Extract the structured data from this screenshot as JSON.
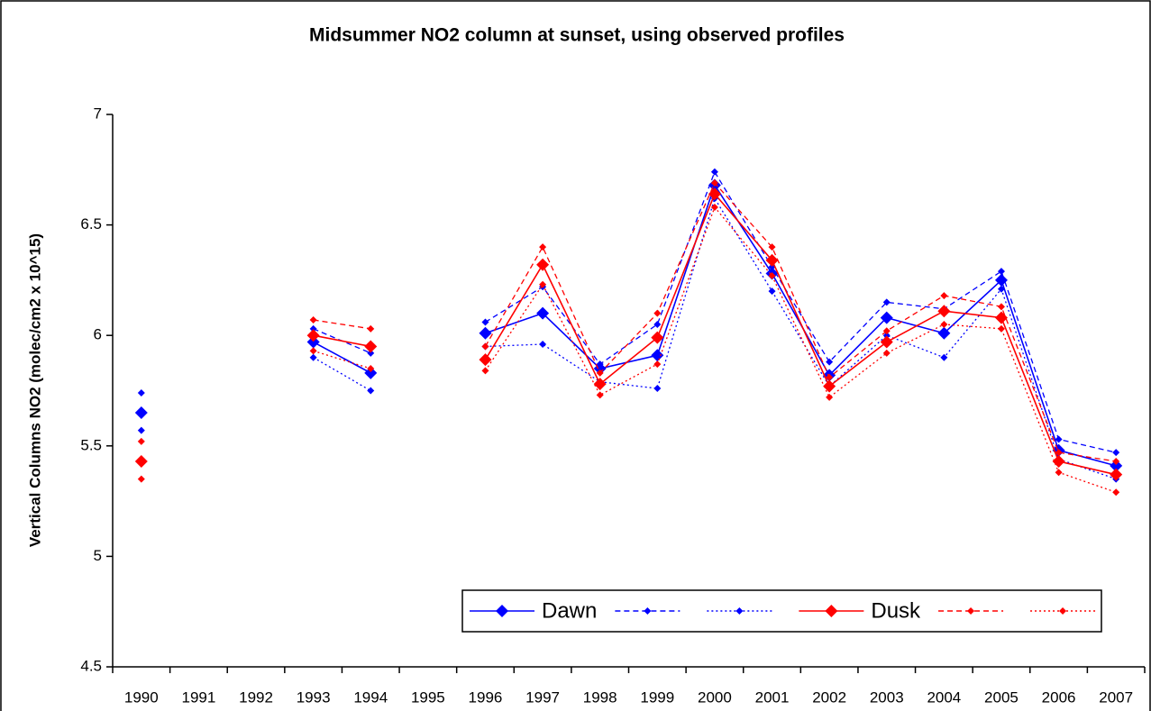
{
  "chart_data": {
    "type": "line",
    "title": "Midsummer NO2 column at sunset, using observed profiles",
    "y_label": "Vertical Columns NO2 (molec/cm2 x 10^15)",
    "categories": [
      "1990",
      "1991",
      "1992",
      "1993",
      "1994",
      "1995",
      "1996",
      "1997",
      "1998",
      "1999",
      "2000",
      "2001",
      "2002",
      "2003",
      "2004",
      "2005",
      "2006",
      "2007"
    ],
    "ylim": [
      4.5,
      7
    ],
    "yticks": [
      4.5,
      5,
      5.5,
      6,
      6.5,
      7
    ],
    "grid": false,
    "legend": "bottom-right",
    "series": [
      {
        "name": "Dawn",
        "color": "#0000ff",
        "style": "solid",
        "marker": "large",
        "values": [
          5.65,
          null,
          null,
          5.97,
          5.83,
          null,
          6.01,
          6.1,
          5.85,
          5.91,
          6.68,
          6.28,
          5.82,
          6.08,
          6.01,
          6.25,
          5.48,
          5.41
        ]
      },
      {
        "color": "#0000ff",
        "style": "dashed",
        "marker": "small",
        "values": [
          5.74,
          null,
          null,
          6.03,
          5.92,
          null,
          6.06,
          6.22,
          5.87,
          6.05,
          6.74,
          6.31,
          5.88,
          6.15,
          6.12,
          6.29,
          5.53,
          5.47
        ]
      },
      {
        "color": "#0000ff",
        "style": "dotted",
        "marker": "small",
        "values": [
          5.57,
          null,
          null,
          5.9,
          5.75,
          null,
          5.95,
          5.96,
          5.79,
          5.76,
          6.62,
          6.2,
          5.77,
          6.0,
          5.9,
          6.21,
          5.44,
          5.35
        ]
      },
      {
        "name": "Dusk",
        "color": "#ff0000",
        "style": "solid",
        "marker": "large",
        "values": [
          5.43,
          null,
          null,
          6.0,
          5.95,
          null,
          5.89,
          6.32,
          5.78,
          5.99,
          6.64,
          6.34,
          5.77,
          5.97,
          6.11,
          6.08,
          5.43,
          5.37
        ]
      },
      {
        "color": "#ff0000",
        "style": "dashed",
        "marker": "small",
        "values": [
          5.52,
          null,
          null,
          6.07,
          6.03,
          null,
          5.95,
          6.4,
          5.83,
          6.1,
          6.69,
          6.4,
          5.81,
          6.02,
          6.18,
          6.13,
          5.47,
          5.43
        ]
      },
      {
        "color": "#ff0000",
        "style": "dotted",
        "marker": "small",
        "values": [
          5.35,
          null,
          null,
          5.93,
          5.85,
          null,
          5.84,
          6.23,
          5.73,
          5.87,
          6.58,
          6.27,
          5.72,
          5.92,
          6.05,
          6.03,
          5.38,
          5.29
        ]
      }
    ]
  }
}
